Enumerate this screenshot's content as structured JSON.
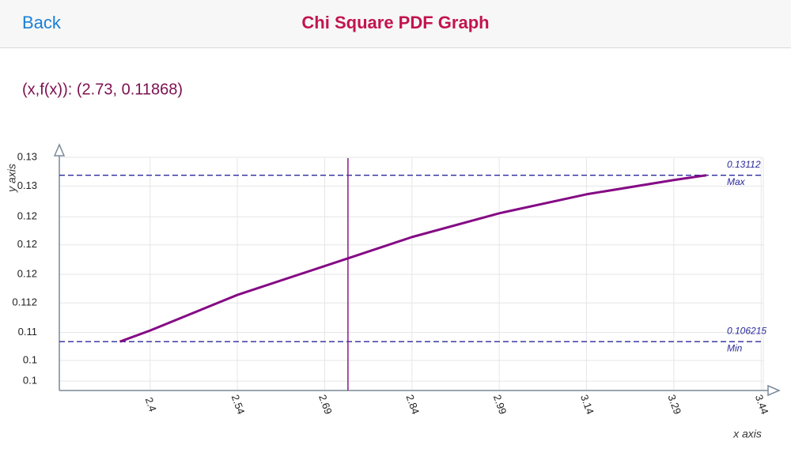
{
  "header": {
    "back": "Back",
    "title": "Chi Square PDF Graph"
  },
  "readout": "(x,f(x)): (2.73, 0.11868)",
  "chart_data": {
    "type": "line",
    "xlabel": "x axis",
    "ylabel": "y axis",
    "x": [
      2.338,
      2.39,
      2.54,
      2.73,
      2.84,
      2.99,
      3.14,
      3.29,
      3.346
    ],
    "values": [
      0.106215,
      0.10788,
      0.11321,
      0.11868,
      0.12187,
      0.12543,
      0.12827,
      0.1304,
      0.13112
    ],
    "color": "#850a85",
    "xlim": [
      2.234,
      3.471
    ],
    "ylim": [
      0.0989,
      0.1357
    ],
    "xticks": [
      {
        "value": 2.39,
        "label": "2.4"
      },
      2.54,
      2.69,
      2.84,
      2.99,
      3.14,
      3.29,
      3.44
    ],
    "yticks": [
      {
        "value": 0.1003,
        "label": "0.1"
      },
      {
        "value": 0.1034,
        "label": "0.1"
      },
      {
        "value": 0.1076,
        "label": "0.11"
      },
      0.112,
      {
        "value": 0.1163,
        "label": "0.12"
      },
      {
        "value": 0.1207,
        "label": "0.12"
      },
      {
        "value": 0.1249,
        "label": "0.12"
      },
      {
        "value": 0.1295,
        "label": "0.13"
      },
      {
        "value": 0.1338,
        "label": "0.13"
      }
    ],
    "grid": true,
    "ref_lines": [
      {
        "value": 0.13112,
        "label": "Max",
        "color": "#2a2a9c"
      },
      {
        "value": 0.106215,
        "label": "Min",
        "color": "#2a2a9c"
      }
    ],
    "cursor_x": 2.73,
    "cursor_color": "#8b1a8b"
  }
}
